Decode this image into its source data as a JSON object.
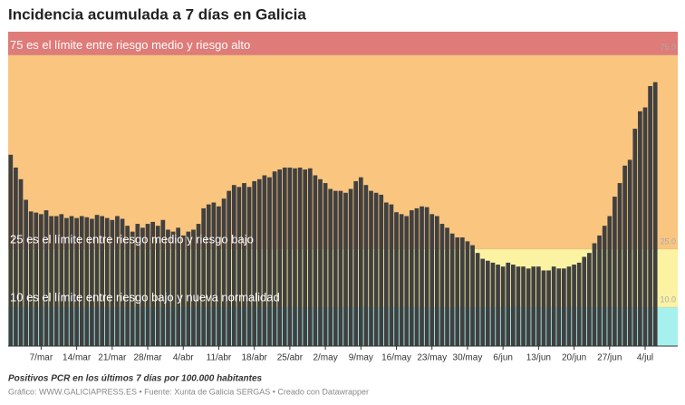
{
  "chart_data": {
    "type": "bar",
    "title": "Incidencia acumulada a 7 días en Galicia",
    "subtitle": "Positivos PCR en los últimos 7 días por 100.000 habitantes",
    "source": "Gráfico: WWW.GALICIAPRESS.ES • Fuente: Xunta de Galicia SERGAS • Creado con Datawrapper",
    "annotations": [
      "75 es el límite entre riesgo medio y riesgo alto",
      "25 es el límite entre riesgo medio y riesgo bajo",
      "10 es el límite entre riesgo bajo y nueva normalidad"
    ],
    "band_colors": [
      "#a6f0ee",
      "#fbf3a2",
      "#f9c57f",
      "#df7b78"
    ],
    "color": "#404040",
    "ylim": [
      0,
      81
    ],
    "yticks": [
      {
        "value": 10,
        "label": "10.0"
      },
      {
        "value": 25,
        "label": "25.0"
      },
      {
        "value": 75,
        "label": "75.0"
      }
    ],
    "categories": [
      null,
      null,
      null,
      null,
      null,
      null,
      "7/mar",
      null,
      null,
      null,
      null,
      null,
      null,
      "14/mar",
      null,
      null,
      null,
      null,
      null,
      null,
      "21/mar",
      null,
      null,
      null,
      null,
      null,
      null,
      "28/mar",
      null,
      null,
      null,
      null,
      null,
      null,
      "4/abr",
      null,
      null,
      null,
      null,
      null,
      null,
      "11/abr",
      null,
      null,
      null,
      null,
      null,
      null,
      "18/abr",
      null,
      null,
      null,
      null,
      null,
      null,
      "25/abr",
      null,
      null,
      null,
      null,
      null,
      null,
      "2/may",
      null,
      null,
      null,
      null,
      null,
      null,
      "9/may",
      null,
      null,
      null,
      null,
      null,
      null,
      "16/may",
      null,
      null,
      null,
      null,
      null,
      null,
      "23/may",
      null,
      null,
      null,
      null,
      null,
      null,
      "30/may",
      null,
      null,
      null,
      null,
      null,
      null,
      "6/jun",
      null,
      null,
      null,
      null,
      null,
      null,
      "13/jun",
      null,
      null,
      null,
      null,
      null,
      null,
      "20/jun",
      null,
      null,
      null,
      null,
      null,
      null,
      "27/jun",
      null,
      null,
      null,
      null,
      null,
      null,
      "4/jul",
      null,
      null
    ],
    "values": [
      49.3,
      46,
      43,
      37.7,
      34.7,
      34.4,
      34,
      35,
      33.5,
      33.5,
      34,
      33,
      33.5,
      33,
      33.5,
      33.2,
      32.8,
      33.8,
      33.5,
      33,
      32.5,
      33.5,
      32.8,
      31,
      29.5,
      31.5,
      30.5,
      31.5,
      32,
      31,
      32.5,
      30,
      29.5,
      30.5,
      28.5,
      29.5,
      30,
      31.5,
      35.5,
      36.5,
      37,
      36,
      38,
      40,
      41.5,
      41,
      42,
      41,
      42.5,
      43,
      44,
      43.5,
      45,
      45.5,
      46,
      46,
      45.8,
      46,
      45.5,
      45.8,
      44,
      43,
      42,
      40.5,
      40,
      40,
      39.5,
      40.5,
      42.5,
      43.5,
      41.5,
      40,
      39.5,
      39,
      37,
      36.5,
      34.5,
      34,
      33.5,
      35,
      35.5,
      36,
      35.8,
      34,
      33.5,
      31.5,
      30.5,
      29,
      28,
      28,
      27,
      26,
      24,
      22.5,
      22,
      21.5,
      21,
      20.5,
      21.5,
      21,
      20.5,
      20.5,
      20,
      20.5,
      20.5,
      19.5,
      19.5,
      20.5,
      20,
      20,
      20.5,
      21,
      21.5,
      23,
      24,
      26.5,
      28.5,
      31,
      33.5,
      38.5,
      42,
      46.5,
      48,
      56,
      60.5,
      61.5,
      67,
      68
    ]
  }
}
